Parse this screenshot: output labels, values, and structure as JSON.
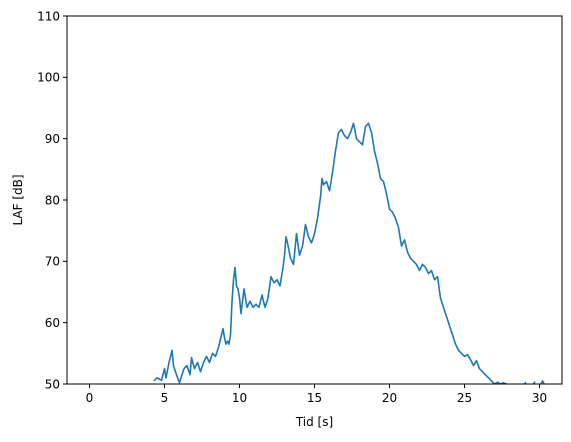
{
  "chart_data": {
    "type": "line",
    "title": "",
    "xlabel": "Tid [s]",
    "ylabel": "LAF [dB]",
    "xlim": [
      -1.5,
      31.5
    ],
    "ylim": [
      50,
      110
    ],
    "xticks": [
      0,
      5,
      10,
      15,
      20,
      25,
      30
    ],
    "yticks": [
      50,
      60,
      70,
      80,
      90,
      100,
      110
    ],
    "grid": false,
    "color": "#1f77b4",
    "series": [
      {
        "x": [
          4.3,
          4.5,
          4.8,
          5.0,
          5.1,
          5.3,
          5.5,
          5.6,
          5.8,
          6.0,
          6.1,
          6.3,
          6.5,
          6.7,
          6.8,
          7.0,
          7.2,
          7.4,
          7.6,
          7.8,
          8.0,
          8.2,
          8.4,
          8.6,
          8.8,
          8.9,
          9.0,
          9.1,
          9.2,
          9.3,
          9.4,
          9.5,
          9.6,
          9.7,
          9.8,
          9.9,
          10.0,
          10.1,
          10.3,
          10.5,
          10.7,
          10.9,
          11.1,
          11.3,
          11.5,
          11.7,
          11.9,
          12.1,
          12.3,
          12.5,
          12.7,
          12.9,
          13.0,
          13.1,
          13.2,
          13.4,
          13.6,
          13.8,
          14.0,
          14.2,
          14.4,
          14.6,
          14.8,
          15.0,
          15.2,
          15.4,
          15.5,
          15.6,
          15.8,
          16.0,
          16.2,
          16.4,
          16.6,
          16.8,
          17.0,
          17.2,
          17.4,
          17.6,
          17.8,
          18.0,
          18.2,
          18.4,
          18.6,
          18.8,
          19.0,
          19.2,
          19.4,
          19.6,
          19.8,
          20.0,
          20.2,
          20.4,
          20.6,
          20.8,
          21.0,
          21.2,
          21.4,
          21.6,
          21.8,
          22.0,
          22.2,
          22.4,
          22.6,
          22.8,
          23.0,
          23.2,
          23.4,
          23.6,
          23.8,
          24.0,
          24.2,
          24.4,
          24.6,
          24.8,
          25.0,
          25.2,
          25.4,
          25.6,
          25.8,
          26.0,
          26.2,
          26.4,
          26.6,
          26.8,
          27.0,
          27.2,
          27.4,
          27.6,
          27.8
        ],
        "y": [
          50.5,
          51.0,
          50.6,
          52.5,
          51.0,
          53.5,
          55.5,
          53.0,
          51.5,
          50.2,
          51.0,
          52.5,
          53.0,
          51.5,
          54.3,
          52.5,
          53.5,
          52.0,
          53.5,
          54.5,
          53.5,
          55.0,
          54.5,
          56.0,
          58.0,
          59.0,
          57.5,
          56.5,
          57.0,
          56.5,
          58.0,
          63.5,
          67.0,
          69.0,
          66.0,
          65.5,
          64.0,
          61.5,
          65.5,
          62.5,
          63.5,
          62.5,
          63.0,
          62.5,
          64.5,
          62.5,
          64.0,
          67.5,
          66.5,
          67.0,
          66.0,
          69.0,
          71.0,
          74.0,
          73.0,
          70.5,
          69.5,
          74.5,
          71.0,
          72.5,
          76.0,
          74.0,
          73.0,
          74.5,
          77.0,
          80.5,
          83.5,
          82.5,
          83.0,
          81.5,
          84.5,
          88.0,
          91.0,
          91.5,
          90.5,
          90.0,
          91.0,
          92.5,
          90.0,
          89.5,
          89.0,
          92.0,
          92.5,
          91.0,
          88.0,
          86.0,
          83.5,
          83.0,
          81.0,
          78.5,
          78.0,
          77.0,
          75.5,
          72.5,
          73.5,
          71.5,
          70.5,
          70.0,
          69.5,
          68.5,
          69.5,
          69.0,
          68.0,
          68.5,
          67.0,
          67.5,
          64.0,
          62.5,
          61.0,
          59.5,
          58.0,
          56.5,
          55.5,
          55.0,
          54.5,
          54.8,
          54.0,
          53.0,
          53.8,
          52.5,
          52.0,
          51.5,
          51.0,
          50.5,
          50.0,
          50.3,
          50.0,
          50.2,
          50.0
        ]
      },
      {
        "x": [
          29.0,
          29.1
        ],
        "y": [
          50.0,
          50.3
        ]
      },
      {
        "x": [
          29.6,
          29.7
        ],
        "y": [
          50.0,
          50.4
        ]
      },
      {
        "x": [
          30.1,
          30.2,
          30.3
        ],
        "y": [
          50.0,
          50.5,
          50.1
        ]
      }
    ]
  }
}
